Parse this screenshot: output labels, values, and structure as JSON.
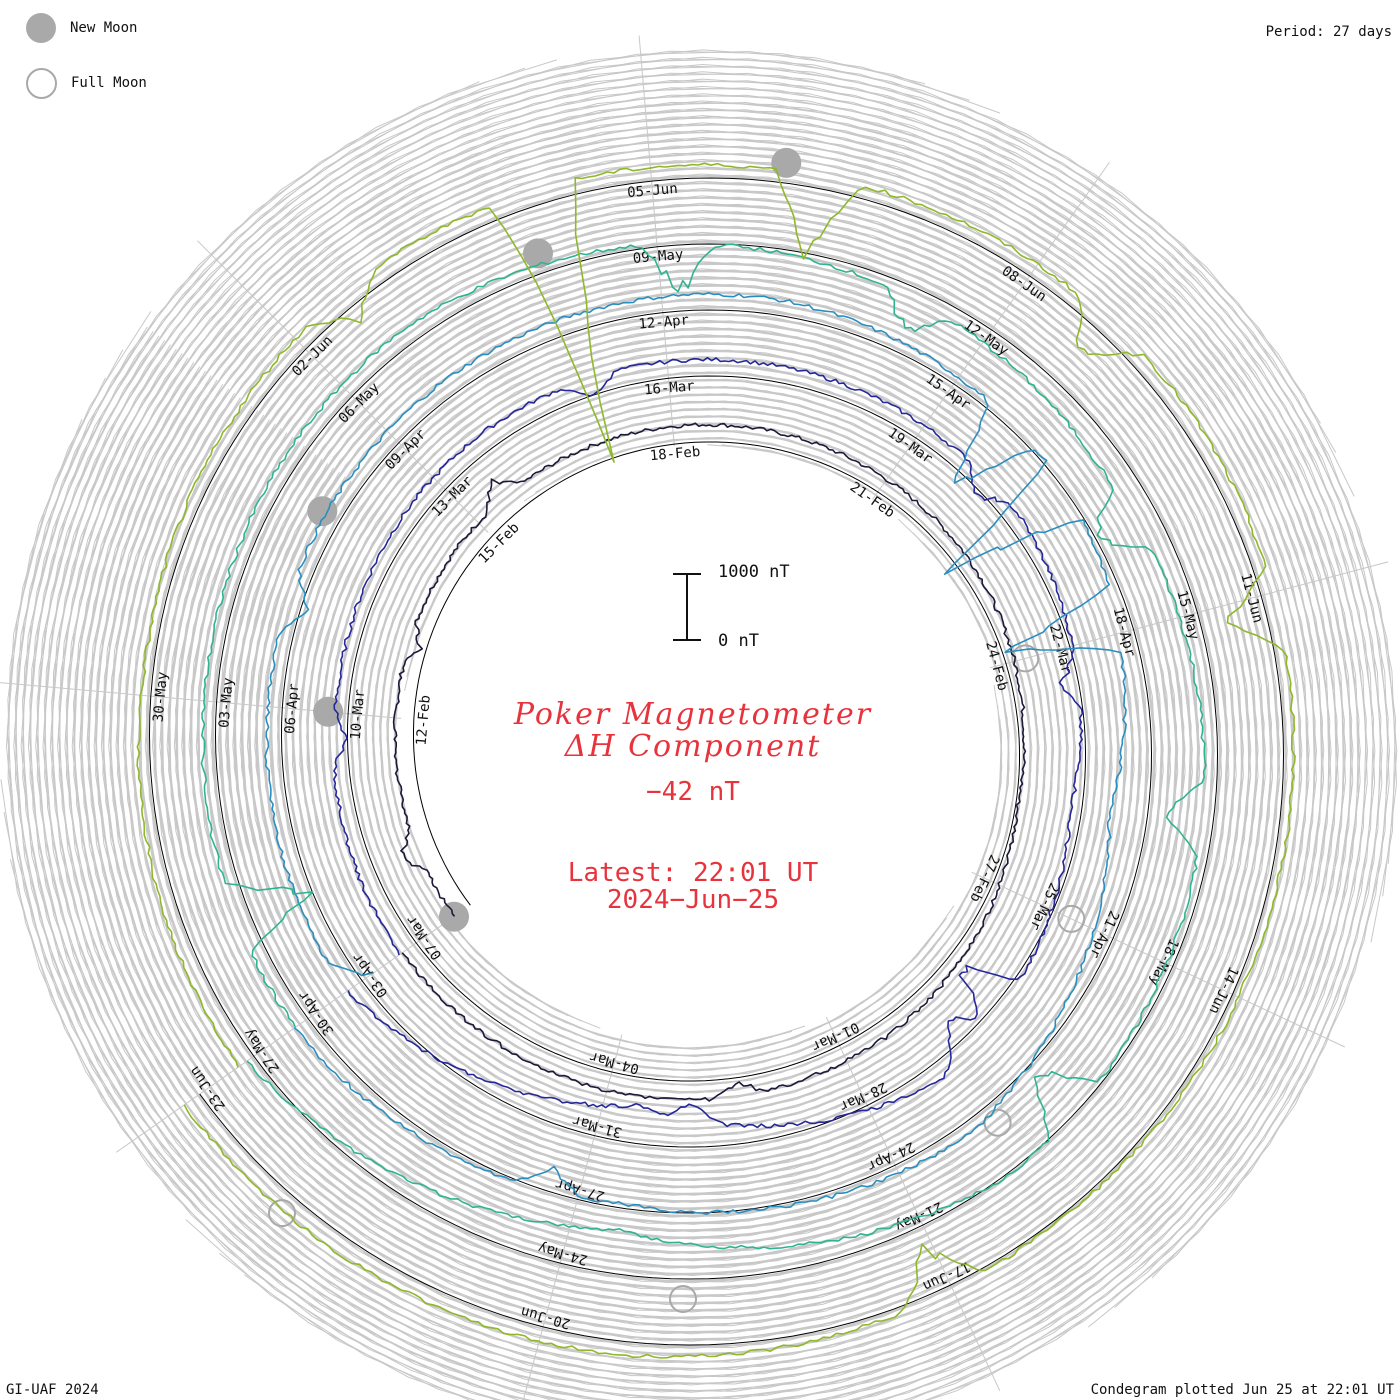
{
  "legend": {
    "new_moon_label": "New Moon",
    "full_moon_label": "Full Moon",
    "new_moon_color": "#a9a9a9",
    "full_moon_color": "#a9a9a9"
  },
  "period_label": "Period: 27 days",
  "footer_left": "GI-UAF 2024",
  "footer_right": "Condegram plotted Jun 25 at 22:01 UT",
  "center": {
    "title_line1": "Poker Magnetometer",
    "title_line2": "ΔH Component",
    "current_value": "−42 nT",
    "latest_line1": "Latest: 22:01 UT",
    "latest_line2": "2024−Jun−25",
    "scale_top": "1000 nT",
    "scale_bottom": "0 nT",
    "text_color": "#e8323c"
  },
  "chart_data": {
    "type": "line",
    "title": "Poker Magnetometer ΔH Component",
    "ylabel": "nT",
    "y_scale_bar_nT": [
      0,
      1000
    ],
    "period_days": 27,
    "start_date": "2024-02-09",
    "end_date": "2024-06-25 22:01",
    "latest_value_nT": -42,
    "series": [
      {
        "start": "2024-02-09",
        "color": "#1a1a3a",
        "dates": [
          "12-Feb",
          "15-Feb",
          "18-Feb",
          "21-Feb",
          "24-Feb",
          "27-Feb",
          "01-Mar",
          "04-Mar",
          "07-Mar"
        ],
        "values": [
          -40,
          -60,
          -30,
          -80,
          -120,
          -300,
          -90,
          -40,
          -70
        ],
        "spikes": [
          [
            0.04,
            300
          ],
          [
            0.15,
            -200
          ],
          [
            0.24,
            350
          ],
          [
            0.83,
            -250
          ]
        ]
      },
      {
        "start": "2024-03-07",
        "color": "#25279a",
        "dates": [
          "10-Mar",
          "13-Mar",
          "16-Mar",
          "19-Mar",
          "22-Mar",
          "25-Mar",
          "28-Mar",
          "31-Mar",
          "03-Apr"
        ],
        "values": [
          -40,
          -150,
          -60,
          -90,
          -120,
          -500,
          -80,
          -900,
          -60
        ],
        "spikes": [
          [
            0.1,
            -250
          ],
          [
            0.3,
            -350
          ],
          [
            0.48,
            -350
          ],
          [
            0.57,
            -300
          ],
          [
            0.71,
            -1100
          ],
          [
            0.73,
            -700
          ],
          [
            0.85,
            -300
          ]
        ]
      },
      {
        "start": "2024-04-03",
        "color": "#2b8ec0",
        "dates": [
          "06-Apr",
          "09-Apr",
          "12-Apr",
          "15-Apr",
          "18-Apr",
          "21-Apr",
          "24-Apr",
          "27-Apr",
          "30-Apr"
        ],
        "values": [
          -60,
          -120,
          -80,
          -100,
          -300,
          -900,
          -150,
          -400,
          -80
        ],
        "spikes": [
          [
            0.0,
            -500
          ],
          [
            0.15,
            -400
          ],
          [
            0.47,
            -1500
          ],
          [
            0.5,
            -2500
          ],
          [
            0.55,
            -2000
          ],
          [
            0.9,
            -400
          ]
        ]
      },
      {
        "start": "2024-04-30",
        "color": "#2fb490",
        "dates": [
          "03-May",
          "06-May",
          "09-May",
          "12-May",
          "15-May",
          "18-May",
          "21-May",
          "24-May",
          "27-May"
        ],
        "values": [
          -100,
          -150,
          -90,
          -400,
          -700,
          -500,
          -300,
          -1000,
          -200
        ],
        "spikes": [
          [
            0.04,
            -1400
          ],
          [
            0.34,
            -900
          ],
          [
            0.42,
            -600
          ],
          [
            0.52,
            -900
          ],
          [
            0.62,
            -700
          ],
          [
            0.72,
            -1000
          ]
        ]
      },
      {
        "start": "2024-05-27",
        "color": "#8fb82a",
        "dates": [
          "30-May",
          "02-Jun",
          "05-Jun",
          "08-Jun",
          "11-Jun",
          "14-Jun",
          "17-Jun",
          "20-Jun",
          "23-Jun"
        ],
        "values": [
          -60,
          -200,
          -80,
          -150,
          -100,
          -200,
          -300,
          -120,
          -42
        ],
        "spikes": [
          [
            0.24,
            -600
          ],
          [
            0.3,
            -4500
          ],
          [
            0.38,
            -1400
          ],
          [
            0.47,
            -800
          ],
          [
            0.56,
            -900
          ],
          [
            0.78,
            -900
          ]
        ]
      }
    ],
    "new_moon_dates": [
      "2024-02-09",
      "2024-03-10",
      "2024-04-08",
      "2024-05-08",
      "2024-06-06"
    ],
    "full_moon_dates": [
      "2024-02-24",
      "2024-03-25",
      "2024-04-23",
      "2024-05-23",
      "2024-06-22"
    ]
  }
}
